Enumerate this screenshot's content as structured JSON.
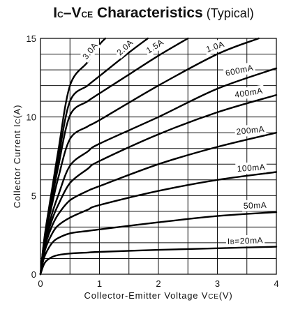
{
  "chart_data": {
    "type": "line",
    "title": {
      "p1": "I",
      "p1_sub": "C",
      "dash": "–",
      "p2": "V",
      "p2_sub": "CE",
      "p3": " Characteristics",
      "p4": " (Typical)"
    },
    "xlabel": {
      "main": "Collector-Emitter Voltage V",
      "sub": "CE",
      "unit": "(V)"
    },
    "ylabel": {
      "main": "Collector Current I",
      "sub": "C",
      "unit": "(A)"
    },
    "xlim": [
      0,
      4
    ],
    "ylim": [
      0,
      15
    ],
    "x_ticks": [
      "0",
      "1",
      "2",
      "3",
      "4"
    ],
    "y_ticks": [
      "0",
      "5",
      "10",
      "15"
    ],
    "grid": true,
    "series": [
      {
        "name": "I",
        "name_sub": "B",
        "name_rest": "=20mA",
        "x": [
          0,
          0.05,
          0.1,
          0.2,
          0.3,
          0.5,
          0.8,
          1,
          2,
          3,
          4
        ],
        "y": [
          0,
          0.55,
          0.85,
          1.1,
          1.22,
          1.32,
          1.38,
          1.42,
          1.55,
          1.65,
          1.75
        ]
      },
      {
        "name": "50mA",
        "x": [
          0,
          0.05,
          0.1,
          0.2,
          0.3,
          0.5,
          0.8,
          1,
          2,
          3,
          4
        ],
        "y": [
          0,
          0.9,
          1.4,
          2.0,
          2.3,
          2.6,
          2.75,
          2.85,
          3.3,
          3.7,
          3.95
        ]
      },
      {
        "name": "100mA",
        "x": [
          0,
          0.05,
          0.1,
          0.2,
          0.3,
          0.5,
          0.8,
          1,
          2,
          3,
          4
        ],
        "y": [
          0,
          1.1,
          1.8,
          2.6,
          3.1,
          3.6,
          4.1,
          4.4,
          5.3,
          6.0,
          6.5
        ]
      },
      {
        "name": "200mA",
        "x": [
          0,
          0.05,
          0.1,
          0.2,
          0.3,
          0.5,
          0.8,
          1,
          2,
          3,
          4
        ],
        "y": [
          0,
          1.3,
          2.1,
          3.1,
          3.8,
          4.7,
          5.3,
          5.6,
          7.0,
          8.1,
          9.0
        ]
      },
      {
        "name": "400mA",
        "x": [
          0,
          0.05,
          0.1,
          0.2,
          0.3,
          0.5,
          0.8,
          1,
          2,
          3,
          4
        ],
        "y": [
          0,
          1.45,
          2.3,
          3.5,
          4.4,
          5.8,
          6.7,
          7.2,
          8.9,
          10.3,
          11.4
        ]
      },
      {
        "name": "600mA",
        "x": [
          0,
          0.05,
          0.1,
          0.2,
          0.3,
          0.5,
          0.8,
          1,
          2,
          3,
          4
        ],
        "y": [
          0,
          1.55,
          2.5,
          3.9,
          5.0,
          6.9,
          7.8,
          8.3,
          10.0,
          11.8,
          13.1
        ]
      },
      {
        "name": "1.0A",
        "x": [
          0,
          0.05,
          0.1,
          0.2,
          0.3,
          0.5,
          0.8,
          1,
          2,
          3,
          3.7
        ],
        "y": [
          0,
          1.65,
          2.8,
          4.5,
          6.1,
          8.6,
          9.4,
          9.8,
          12.0,
          14.0,
          15.0
        ]
      },
      {
        "name": "1.5A",
        "x": [
          0,
          0.05,
          0.1,
          0.2,
          0.3,
          0.5,
          0.8,
          1,
          1.5,
          2,
          2.5
        ],
        "y": [
          0,
          1.7,
          2.95,
          4.9,
          6.8,
          10.1,
          11.0,
          11.5,
          12.7,
          13.9,
          15.0
        ]
      },
      {
        "name": "2.0A",
        "x": [
          0,
          0.05,
          0.1,
          0.2,
          0.3,
          0.5,
          0.8,
          1,
          1.5,
          1.82
        ],
        "y": [
          0,
          1.75,
          3.05,
          5.2,
          7.3,
          11.0,
          12.0,
          12.6,
          14.1,
          15.0
        ]
      },
      {
        "name": "3.0A",
        "x": [
          0,
          0.05,
          0.1,
          0.2,
          0.3,
          0.5,
          0.8,
          1,
          1.1
        ],
        "y": [
          0,
          1.8,
          3.2,
          5.5,
          7.8,
          12.0,
          13.5,
          14.6,
          15.0
        ]
      }
    ]
  }
}
